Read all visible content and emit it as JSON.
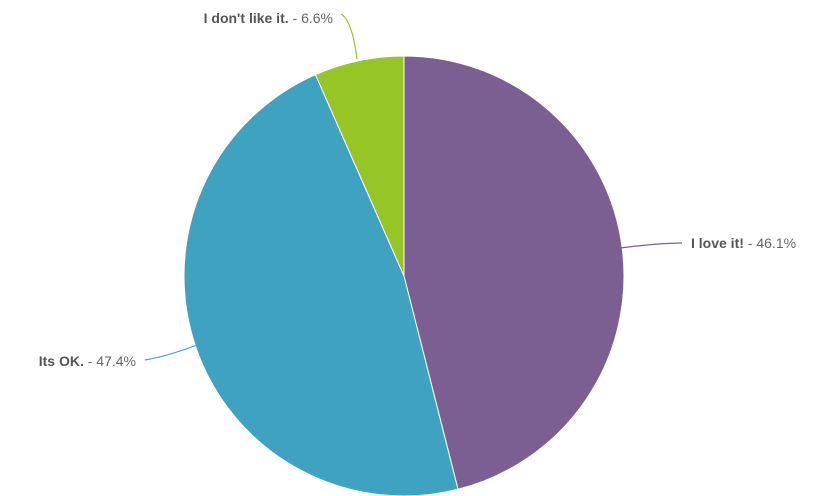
{
  "chart_data": {
    "type": "pie",
    "title": "",
    "slices": [
      {
        "label": "I love it!",
        "value": 46.1,
        "display": "46.1%",
        "color": "#7b5f93"
      },
      {
        "label": "Its OK.",
        "value": 47.4,
        "display": "47.4%",
        "color": "#3fa2c1"
      },
      {
        "label": "I don't like it.",
        "value": 6.6,
        "display": "6.6%",
        "color": "#96c626"
      }
    ],
    "separator": " - ",
    "start": "12 o'clock",
    "direction": "clockwise",
    "legend": "none (labels with leader lines)"
  }
}
